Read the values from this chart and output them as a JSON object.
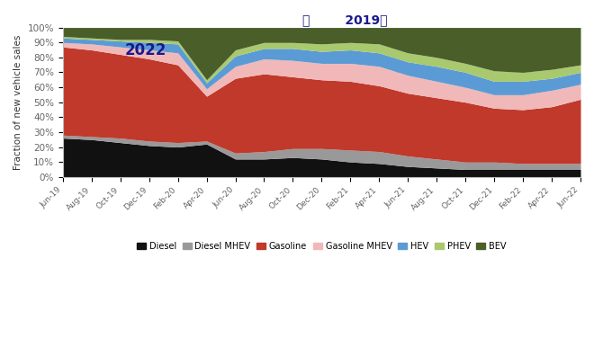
{
  "title": "：        2019－",
  "annotation": "2022",
  "ylabel": "Fraction of new vehicle sales",
  "colors": {
    "Diesel": "#111111",
    "Diesel MHEV": "#999999",
    "Gasoline": "#c0392b",
    "Gasoline MHEV": "#f0b8b8",
    "HEV": "#5b9bd5",
    "PHEV": "#a9c96e",
    "BEV": "#4a5e2a"
  },
  "x_labels": [
    "Jun-19",
    "Aug-19",
    "Oct-19",
    "Dec-19",
    "Feb-20",
    "Apr-20",
    "Jun-20",
    "Aug-20",
    "Oct-20",
    "Dec-20",
    "Feb-21",
    "Apr-21",
    "Jun-21",
    "Aug-21",
    "Oct-21",
    "Dec-21",
    "Feb-22",
    "Apr-22",
    "Jun-22"
  ],
  "series": {
    "Diesel": [
      26,
      25,
      23,
      21,
      20,
      22,
      12,
      12,
      13,
      12,
      10,
      9,
      7,
      6,
      5,
      5,
      5,
      5,
      5
    ],
    "Diesel MHEV": [
      2,
      2,
      3,
      3,
      3,
      2,
      4,
      5,
      6,
      7,
      8,
      8,
      7,
      6,
      5,
      5,
      4,
      4,
      4
    ],
    "Gasoline": [
      59,
      58,
      56,
      55,
      52,
      30,
      50,
      52,
      48,
      46,
      46,
      44,
      42,
      41,
      40,
      36,
      36,
      38,
      43
    ],
    "Gasoline MHEV": [
      3,
      4,
      5,
      6,
      8,
      5,
      8,
      10,
      11,
      11,
      12,
      13,
      12,
      11,
      10,
      9,
      10,
      11,
      10
    ],
    "HEV": [
      3,
      3,
      4,
      5,
      6,
      4,
      7,
      7,
      8,
      8,
      9,
      9,
      9,
      10,
      10,
      9,
      9,
      8,
      8
    ],
    "PHEV": [
      1,
      1,
      1,
      2,
      2,
      2,
      4,
      4,
      4,
      5,
      5,
      6,
      6,
      6,
      6,
      7,
      6,
      6,
      5
    ],
    "BEV": [
      6,
      7,
      8,
      8,
      9,
      35,
      15,
      10,
      10,
      11,
      10,
      11,
      17,
      20,
      24,
      29,
      30,
      28,
      25
    ]
  },
  "figsize": [
    6.6,
    3.86
  ],
  "dpi": 100
}
